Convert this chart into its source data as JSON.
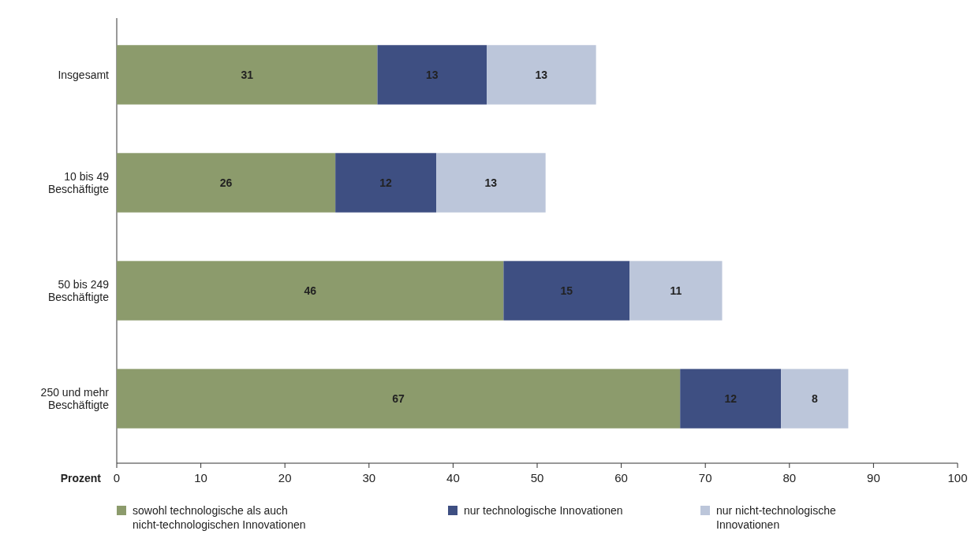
{
  "chart_data": {
    "type": "bar",
    "orientation": "horizontal",
    "stacked": true,
    "categories": [
      "Insgesamt",
      "10 bis 49 Beschäftigte",
      "50 bis 249 Beschäftigte",
      "250 und mehr Beschäftigte"
    ],
    "series": [
      {
        "name": "sowohl technologische als auch nicht-technologischen Innovationen",
        "color": "#8c9b6c",
        "values": [
          31,
          26,
          46,
          67
        ]
      },
      {
        "name": "nur technologische Innovationen",
        "color": "#3e4f82",
        "values": [
          13,
          12,
          15,
          12
        ]
      },
      {
        "name": "nur nicht-technologische Innovationen",
        "color": "#bcc6da",
        "values": [
          13,
          13,
          11,
          8
        ]
      }
    ],
    "xlabel": "Prozent",
    "xlim": [
      0,
      100
    ],
    "xticks": [
      0,
      10,
      20,
      30,
      40,
      50,
      60,
      70,
      80,
      90,
      100
    ],
    "data_labels": true,
    "legend": "bottom",
    "grid": false
  }
}
